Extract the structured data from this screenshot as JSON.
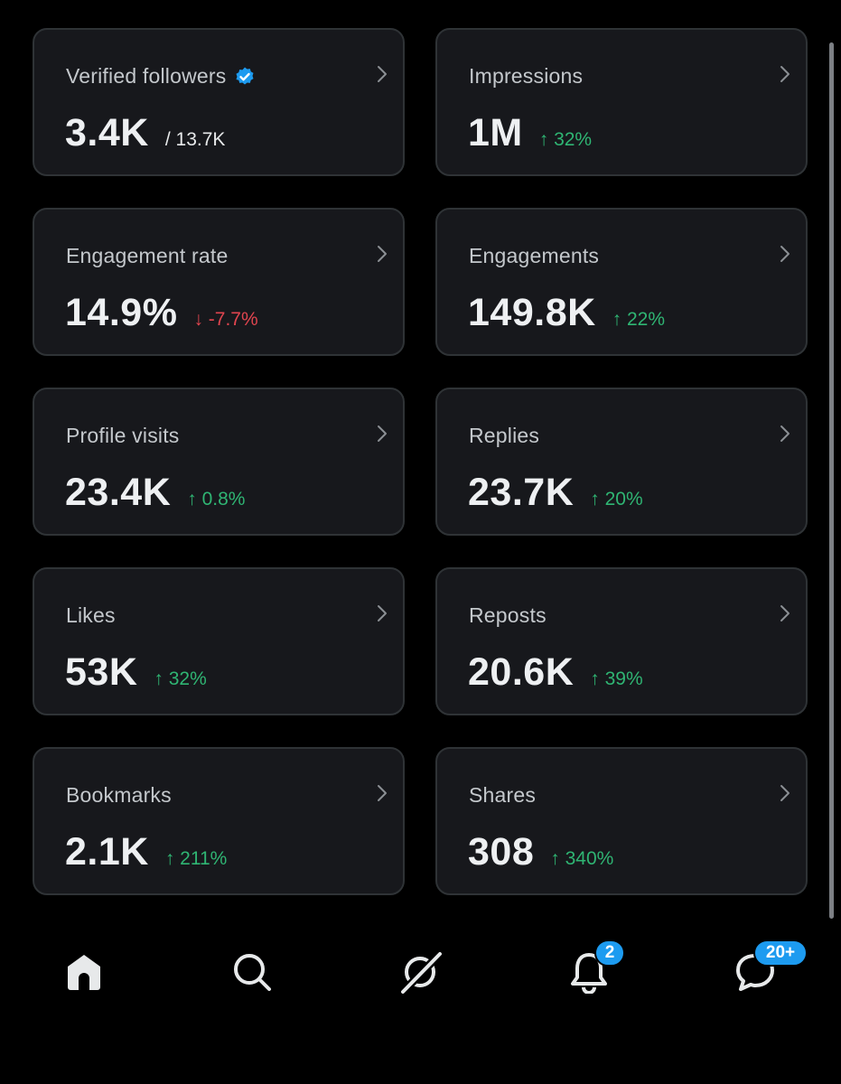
{
  "colors": {
    "background": "#000000",
    "card": "#17181c",
    "card_border": "#2f3336",
    "positive": "#2fb573",
    "negative": "#e0454f",
    "verified": "#1d9bf0",
    "notification_badge": "#1d9bf0"
  },
  "metrics": [
    {
      "label": "Verified followers",
      "value": "3.4K",
      "secondary": "/ 13.7K",
      "verified_icon": "verified-badge-icon"
    },
    {
      "label": "Impressions",
      "value": "1M",
      "delta": "↑ 32%",
      "trend": "up"
    },
    {
      "label": "Engagement rate",
      "value": "14.9%",
      "delta": "↓ -7.7%",
      "trend": "down"
    },
    {
      "label": "Engagements",
      "value": "149.8K",
      "delta": "↑ 22%",
      "trend": "up"
    },
    {
      "label": "Profile visits",
      "value": "23.4K",
      "delta": "↑ 0.8%",
      "trend": "up"
    },
    {
      "label": "Replies",
      "value": "23.7K",
      "delta": "↑ 20%",
      "trend": "up"
    },
    {
      "label": "Likes",
      "value": "53K",
      "delta": "↑ 32%",
      "trend": "up"
    },
    {
      "label": "Reposts",
      "value": "20.6K",
      "delta": "↑ 39%",
      "trend": "up"
    },
    {
      "label": "Bookmarks",
      "value": "2.1K",
      "delta": "↑ 211%",
      "trend": "up"
    },
    {
      "label": "Shares",
      "value": "308",
      "delta": "↑ 340%",
      "trend": "up"
    }
  ],
  "nav": {
    "items": [
      {
        "icon": "home-icon"
      },
      {
        "icon": "search-icon"
      },
      {
        "icon": "grok-icon"
      },
      {
        "icon": "bell-icon",
        "badge": "2"
      },
      {
        "icon": "messages-icon",
        "badge": "20+"
      }
    ]
  }
}
